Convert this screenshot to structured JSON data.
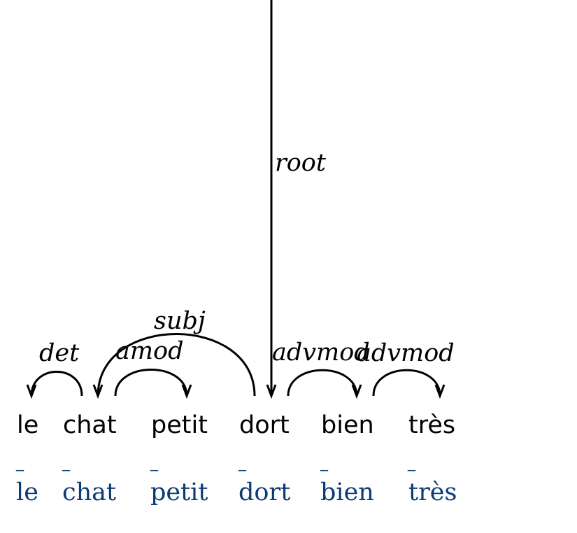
{
  "tokens": [
    {
      "form": "le",
      "tag": "_",
      "lemma": "le"
    },
    {
      "form": "chat",
      "tag": "_",
      "lemma": "chat"
    },
    {
      "form": "petit",
      "tag": "_",
      "lemma": "petit"
    },
    {
      "form": "dort",
      "tag": "_",
      "lemma": "dort"
    },
    {
      "form": "bien",
      "tag": "_",
      "lemma": "bien"
    },
    {
      "form": "très",
      "tag": "_",
      "lemma": "très"
    }
  ],
  "relations": [
    {
      "label": "det",
      "head": "chat",
      "dependent": "le"
    },
    {
      "label": "subj",
      "head": "dort",
      "dependent": "chat"
    },
    {
      "label": "amod",
      "head": "chat",
      "dependent": "petit"
    },
    {
      "label": "root",
      "head": "ROOT",
      "dependent": "dort"
    },
    {
      "label": "advmod",
      "head": "dort",
      "dependent": "bien"
    },
    {
      "label": "advmod",
      "head": "bien",
      "dependent": "très"
    }
  ],
  "colors": {
    "word": "#000000",
    "annotation": "#0b3b73",
    "edge": "#000000"
  }
}
